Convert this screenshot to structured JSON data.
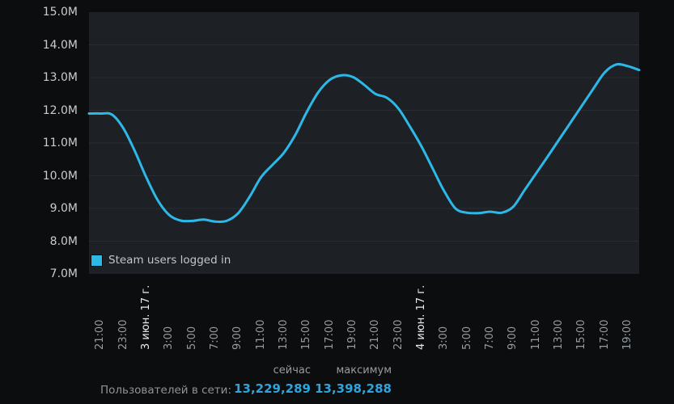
{
  "chart": {
    "legend_label": "Steam users logged in",
    "colors": {
      "page_bg": "#0c0d0f",
      "plot_bg": "#1d2126",
      "grid": "#292d32",
      "line": "#2db9e8",
      "y_label": "#c8ccd0",
      "x_label": "#969ca0",
      "x_label_date": "#e9edef",
      "stat_value": "#2da4db"
    }
  },
  "chart_data": {
    "type": "line",
    "title": "",
    "xlabel": "",
    "ylabel": "",
    "ylim": [
      7,
      15
    ],
    "grid": "horizontal",
    "legend_position": "bottom-left-inside",
    "y_ticks": [
      "15.0M",
      "14.0M",
      "13.0M",
      "12.0M",
      "11.0M",
      "10.0M",
      "9.0M",
      "8.0M",
      "7.0M"
    ],
    "x_ticks": [
      {
        "label": "21:00",
        "date": false
      },
      {
        "label": "23:00",
        "date": false
      },
      {
        "label": "3 июн. 17 г.",
        "date": true
      },
      {
        "label": "3:00",
        "date": false
      },
      {
        "label": "5:00",
        "date": false
      },
      {
        "label": "7:00",
        "date": false
      },
      {
        "label": "9:00",
        "date": false
      },
      {
        "label": "11:00",
        "date": false
      },
      {
        "label": "13:00",
        "date": false
      },
      {
        "label": "15:00",
        "date": false
      },
      {
        "label": "17:00",
        "date": false
      },
      {
        "label": "19:00",
        "date": false
      },
      {
        "label": "21:00",
        "date": false
      },
      {
        "label": "23:00",
        "date": false
      },
      {
        "label": "4 июн. 17 г.",
        "date": true
      },
      {
        "label": "3:00",
        "date": false
      },
      {
        "label": "5:00",
        "date": false
      },
      {
        "label": "7:00",
        "date": false
      },
      {
        "label": "9:00",
        "date": false
      },
      {
        "label": "11:00",
        "date": false
      },
      {
        "label": "13:00",
        "date": false
      },
      {
        "label": "15:00",
        "date": false
      },
      {
        "label": "17:00",
        "date": false
      },
      {
        "label": "19:00",
        "date": false
      }
    ],
    "first_tick_hour": 1,
    "tick_interval_hours": 2,
    "series": [
      {
        "name": "Steam users logged in",
        "unit": "millions of users",
        "interval_hours": 1,
        "values": [
          11.9,
          11.9,
          11.87,
          11.45,
          10.75,
          9.95,
          9.25,
          8.8,
          8.63,
          8.62,
          8.66,
          8.6,
          8.62,
          8.85,
          9.35,
          9.95,
          10.33,
          10.7,
          11.25,
          11.95,
          12.55,
          12.93,
          13.07,
          13.02,
          12.78,
          12.5,
          12.38,
          12.05,
          11.5,
          10.9,
          10.21,
          9.52,
          8.99,
          8.87,
          8.86,
          8.9,
          8.87,
          9.05,
          9.56,
          10.07,
          10.58,
          11.1,
          11.62,
          12.14,
          12.66,
          13.16,
          13.4,
          13.35,
          13.23
        ]
      }
    ]
  },
  "stats": {
    "col_now": "сейчас",
    "col_max": "максимум",
    "row_label": "Пользователей в сети:",
    "now_value": "13,229,289",
    "max_value": "13,398,288"
  }
}
